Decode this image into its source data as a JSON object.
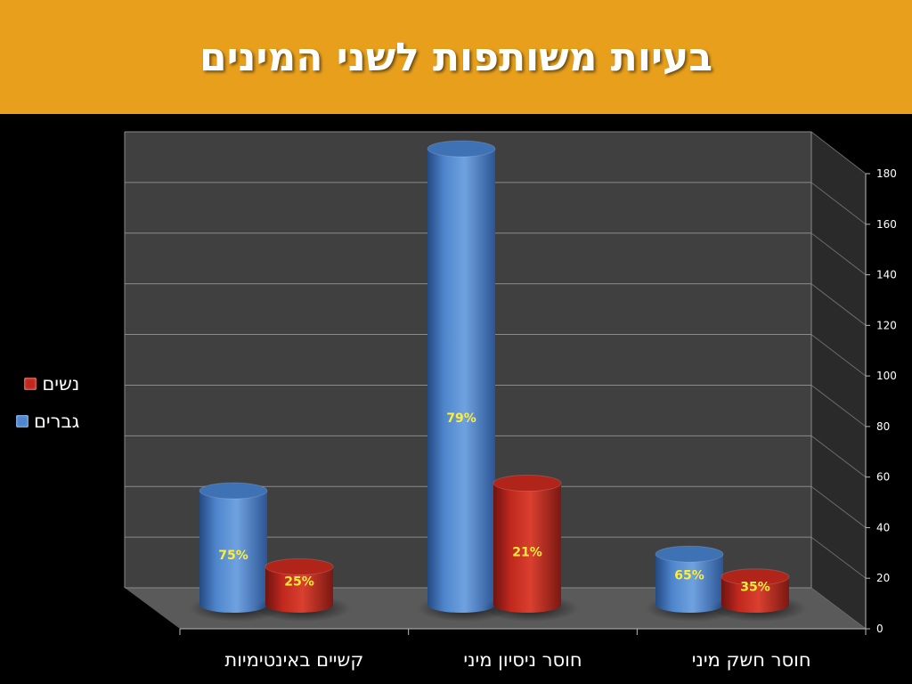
{
  "title": "בעיות משותפות לשני המינים",
  "legend": {
    "women": "נשים",
    "men": "גברים"
  },
  "colors": {
    "header": "#e8a01c",
    "men": "#4f86cc",
    "women": "#c0281e",
    "label": "#ffee33"
  },
  "chart_data": {
    "type": "bar",
    "categories": [
      "קשיים באינטימיות",
      "חוסר ניסיון מיני",
      "חוסר חשק מיני"
    ],
    "series": [
      {
        "name": "גברים",
        "values": [
          45,
          180,
          20
        ],
        "labels": [
          "75%",
          "79%",
          "65%"
        ]
      },
      {
        "name": "נשים",
        "values": [
          15,
          48,
          11
        ],
        "labels": [
          "25%",
          "21%",
          "35%"
        ]
      }
    ],
    "ylim": [
      0,
      180
    ],
    "yticks": [
      0,
      20,
      40,
      60,
      80,
      100,
      120,
      140,
      160,
      180
    ],
    "grid": true,
    "legend_position": "left",
    "style": "3d-cylinder"
  }
}
